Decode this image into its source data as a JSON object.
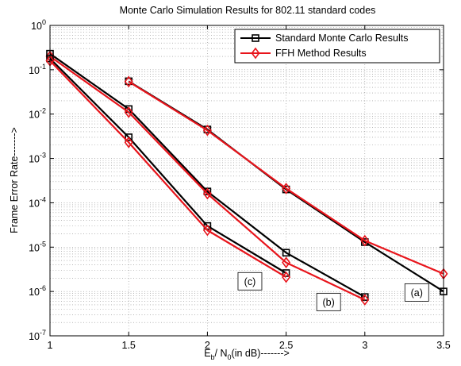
{
  "chart_data": {
    "type": "line",
    "title": "Monte Carlo Simulation Results for 802.11 standard codes",
    "xlabel": {
      "main": "E",
      "sub1": "b",
      "mid": "/ N",
      "sub2": "0",
      "tail": "(in dB)------->"
    },
    "ylabel": "Frame Error Rate------->",
    "x_scale": "linear",
    "y_scale": "log",
    "xlim": [
      1,
      3.5
    ],
    "ylim": [
      1e-07,
      1
    ],
    "x_ticks": [
      1,
      1.5,
      2,
      2.5,
      3,
      3.5
    ],
    "x_tick_labels": [
      "1",
      "1.5",
      "2",
      "2.5",
      "3",
      "3.5"
    ],
    "y_ticks": [
      1e-07,
      1e-06,
      1e-05,
      0.0001,
      0.001,
      0.01,
      0.1,
      1
    ],
    "y_tick_labels": [
      {
        "base": "10",
        "exp": "-7"
      },
      {
        "base": "10",
        "exp": "-6"
      },
      {
        "base": "10",
        "exp": "-5"
      },
      {
        "base": "10",
        "exp": "-4"
      },
      {
        "base": "10",
        "exp": "-3"
      },
      {
        "base": "10",
        "exp": "-2"
      },
      {
        "base": "10",
        "exp": "-1"
      },
      {
        "base": "10",
        "exp": "0"
      }
    ],
    "grid": true,
    "legend": {
      "position": "top-right",
      "entries": [
        {
          "label": "Standard Monte Carlo Results",
          "color": "#000000",
          "marker": "square"
        },
        {
          "label": "FFH Method Results",
          "color": "#e8141b",
          "marker": "diamond"
        }
      ]
    },
    "series": [
      {
        "group": "a",
        "method": "standard",
        "color": "#000000",
        "marker": "square",
        "x": [
          1.5,
          2,
          2.5,
          3,
          3.5
        ],
        "y": [
          0.055,
          0.0045,
          0.0002,
          1.3e-05,
          1e-06
        ]
      },
      {
        "group": "a",
        "method": "ffh",
        "color": "#e8141b",
        "marker": "diamond",
        "x": [
          1.5,
          2,
          2.5,
          3,
          3.5
        ],
        "y": [
          0.054,
          0.0043,
          0.00021,
          1.4e-05,
          2.5e-06
        ]
      },
      {
        "group": "b",
        "method": "standard",
        "color": "#000000",
        "marker": "square",
        "x": [
          1,
          1.5,
          2,
          2.5,
          3
        ],
        "y": [
          0.23,
          0.013,
          0.00018,
          7.5e-06,
          7.5e-07
        ]
      },
      {
        "group": "b",
        "method": "ffh",
        "color": "#e8141b",
        "marker": "diamond",
        "x": [
          1,
          1.5,
          2,
          2.5,
          3
        ],
        "y": [
          0.2,
          0.011,
          0.00016,
          4.5e-06,
          6.5e-07
        ]
      },
      {
        "group": "c",
        "method": "standard",
        "color": "#000000",
        "marker": "square",
        "x": [
          1,
          1.5,
          2,
          2.5
        ],
        "y": [
          0.18,
          0.003,
          3e-05,
          2.6e-06
        ]
      },
      {
        "group": "c",
        "method": "ffh",
        "color": "#e8141b",
        "marker": "diamond",
        "x": [
          1,
          1.5,
          2,
          2.5
        ],
        "y": [
          0.16,
          0.0023,
          2.4e-05,
          2.1e-06
        ]
      }
    ],
    "annotations": [
      {
        "text": "(a)",
        "x": 3.33,
        "y": 9.5e-07
      },
      {
        "text": "(b)",
        "x": 2.77,
        "y": 5.8e-07
      },
      {
        "text": "(c)",
        "x": 2.27,
        "y": 1.7e-06
      }
    ]
  }
}
